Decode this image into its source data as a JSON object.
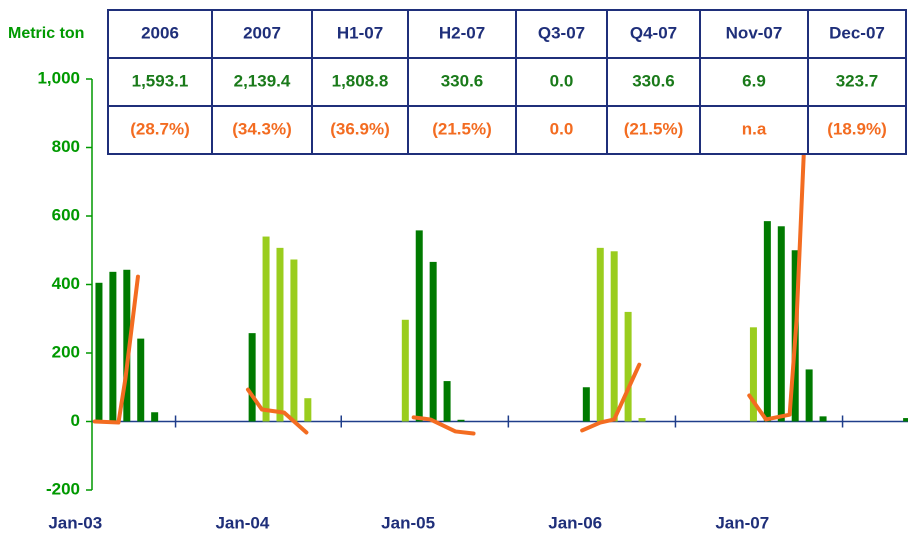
{
  "chart_data": {
    "type": "bar",
    "y_label": "Metric ton",
    "ylim": [
      -200,
      1000
    ],
    "yticks": [
      -200,
      0,
      200,
      400,
      600,
      800,
      {
        "value": 1000,
        "label": "1,000"
      }
    ],
    "xlim": [
      -0.5,
      58.1
    ],
    "xticks": [
      5.5,
      17.4,
      29.4,
      41.4,
      53.4
    ],
    "xtick_labels": [
      {
        "value": -1.7,
        "label": "Jan-03"
      },
      {
        "value": 10.3,
        "label": "Jan-04"
      },
      {
        "value": 22.2,
        "label": "Jan-05"
      },
      {
        "value": 34.2,
        "label": "Jan-06"
      },
      {
        "value": 46.2,
        "label": "Jan-07"
      }
    ],
    "series": [
      {
        "color": "#007a00",
        "x": [
          0,
          1,
          2,
          3,
          4,
          11,
          23,
          24,
          25,
          26,
          35,
          48,
          49,
          50,
          51,
          52,
          58
        ],
        "values": [
          405,
          437,
          443,
          242,
          27,
          258,
          558,
          466,
          118,
          5,
          100,
          585,
          570,
          500,
          152,
          15,
          10
        ]
      },
      {
        "color": "#9acd1e",
        "x": [
          12,
          13,
          14,
          15,
          22,
          36,
          37,
          38,
          39,
          47
        ],
        "values": [
          540,
          507,
          473,
          68,
          297,
          507,
          497,
          320,
          10,
          275
        ]
      },
      {
        "type": "line",
        "color": "#f36c21",
        "x": [
          -0.3,
          1.4,
          1.9,
          2.8,
          null,
          10.7,
          11.7,
          13.3,
          14.9,
          null,
          22.6,
          23.8,
          25.6,
          26.9,
          null,
          34.7,
          36,
          37,
          38.8,
          null,
          46.7,
          47.9,
          49.6,
          50.1,
          50.8
        ],
        "values": [
          0,
          -3,
          125,
          423,
          null,
          93,
          35,
          26,
          -32,
          null,
          12,
          6,
          -29,
          -35,
          null,
          -26,
          -3,
          6,
          166,
          null,
          76,
          6,
          20,
          298,
          955
        ]
      }
    ]
  },
  "table": {
    "columns": [
      "2006",
      "2007",
      "H1-07",
      "H2-07",
      "Q3-07",
      "Q4-07",
      "Nov-07",
      "Dec-07"
    ],
    "rows": [
      [
        "1,593.1",
        "2,139.4",
        "1,808.8",
        "330.6",
        "0.0",
        "330.6",
        "6.9",
        "323.7"
      ],
      [
        "(28.7%)",
        "(34.3%)",
        "(36.9%)",
        "(21.5%)",
        "0.0",
        "(21.5%)",
        "n.a",
        "(18.9%)"
      ]
    ]
  }
}
